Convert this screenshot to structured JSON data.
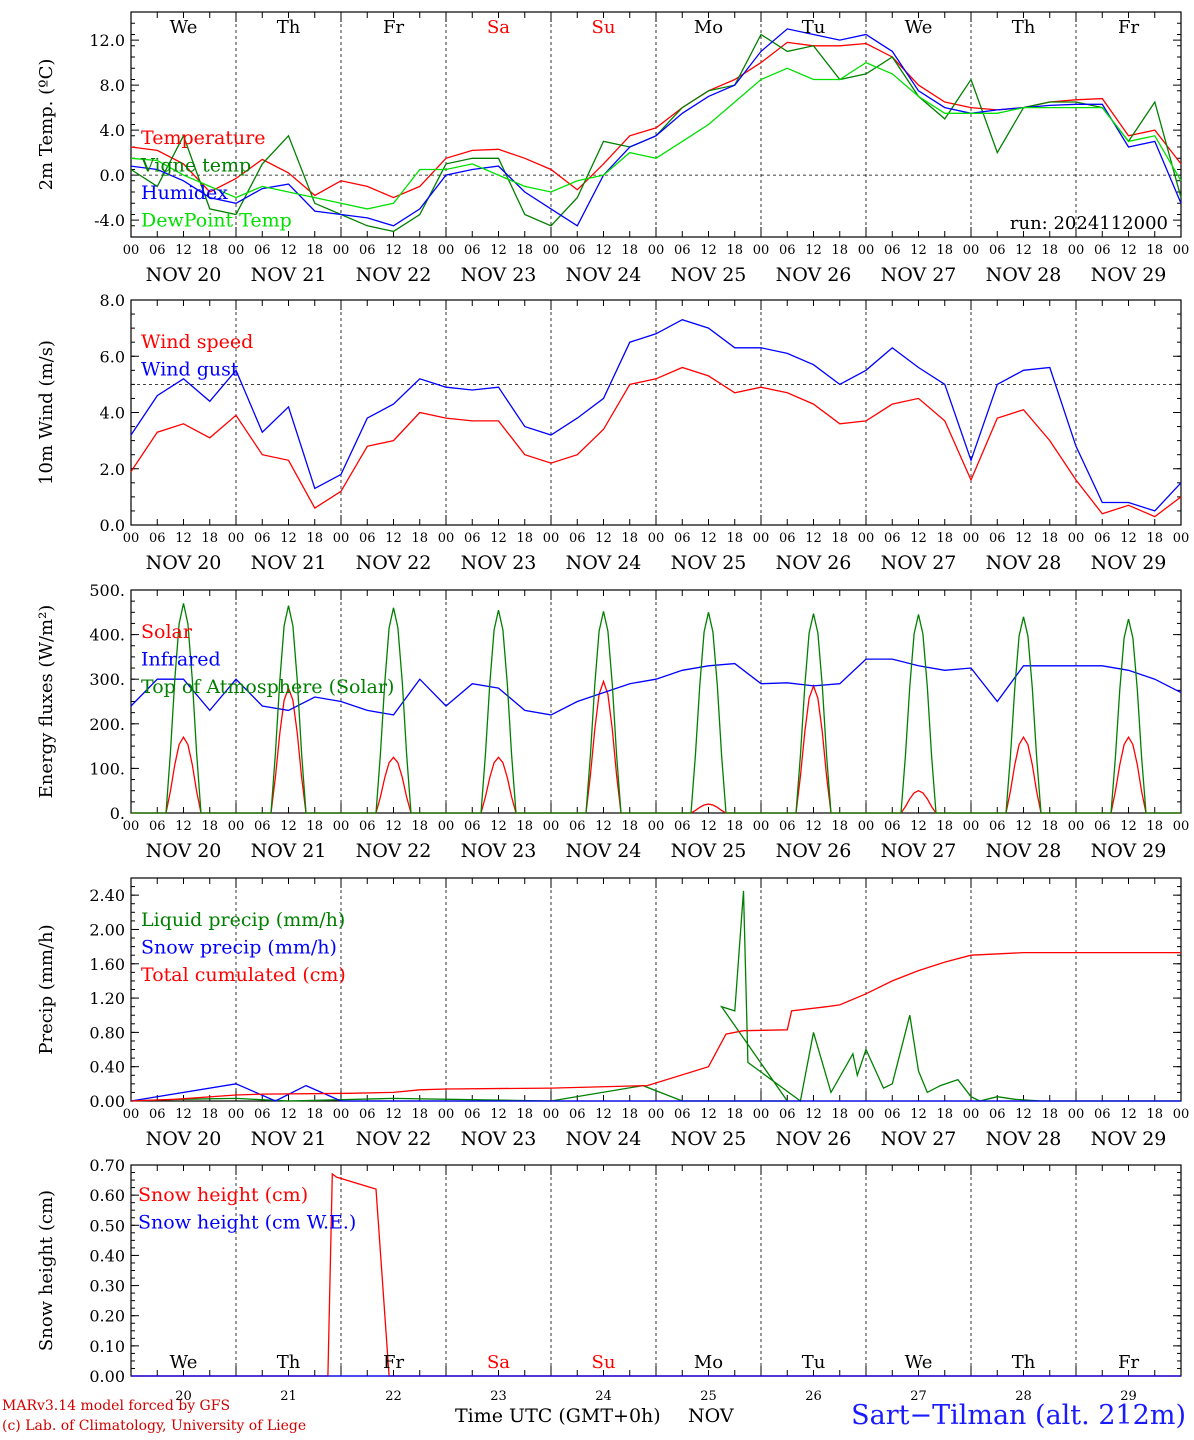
{
  "footer": {
    "model": "MARv3.14 model forced by GFS",
    "credit": "(c) Lab. of Climatology, University of Liege",
    "xlabel": "Time UTC (GMT+0h)",
    "month": "NOV",
    "station": "Sart−Tilman (alt. 212m)"
  },
  "colors": {
    "red": "#ff0000",
    "green": "#008000",
    "blue": "#0000ff",
    "lightgreen": "#00e000",
    "weekend": "#ff0000"
  },
  "days": [
    "We",
    "Th",
    "Fr",
    "Sa",
    "Su",
    "Mo",
    "Tu",
    "We",
    "Th",
    "Fr"
  ],
  "weekend_days": [
    "Sa",
    "Su"
  ],
  "dates": [
    "NOV 20",
    "NOV 21",
    "NOV 22",
    "NOV 23",
    "NOV 24",
    "NOV 25",
    "NOV 26",
    "NOV 27",
    "NOV 28",
    "NOV 29"
  ],
  "day_numbers": [
    "20",
    "21",
    "22",
    "23",
    "24",
    "25",
    "26",
    "27",
    "28",
    "29"
  ],
  "hour_ticks": [
    "00",
    "06",
    "12",
    "18"
  ],
  "chart_data": [
    {
      "type": "line",
      "ylabel": "2m Temp. (ºC)",
      "ylim": [
        -5.5,
        14.5
      ],
      "yticks": [
        "-4.0",
        "0.0",
        "4.0",
        "8.0",
        "12.0"
      ],
      "ytick_values": [
        -4,
        0,
        4,
        8,
        12
      ],
      "x_unit": "hours since NOV 20 00 UTC",
      "annotation": "run: 2024112000",
      "hline": 0,
      "series": [
        {
          "name": "Temperature",
          "color": "#ff0000",
          "x": [
            0,
            6,
            12,
            18,
            24,
            30,
            36,
            42,
            48,
            54,
            60,
            66,
            72,
            78,
            84,
            90,
            96,
            102,
            108,
            114,
            120,
            126,
            132,
            138,
            144,
            150,
            156,
            162,
            168,
            174,
            180,
            186,
            192,
            198,
            204,
            210,
            216,
            222,
            228,
            234,
            240
          ],
          "values": [
            2.5,
            2.2,
            1.0,
            -1.5,
            -0.3,
            1.4,
            0.2,
            -1.8,
            -0.5,
            -1.0,
            -2.0,
            -1.0,
            1.5,
            2.2,
            2.3,
            1.5,
            0.5,
            -1.3,
            1.0,
            3.5,
            4.2,
            6.0,
            7.5,
            8.5,
            10.0,
            11.8,
            11.5,
            11.5,
            11.7,
            10.5,
            8.0,
            6.5,
            6.0,
            5.8,
            6.0,
            6.5,
            6.7,
            6.8,
            3.5,
            4.0,
            1.0
          ]
        },
        {
          "name": "Vigne temp",
          "color": "#008000",
          "x": [
            0,
            6,
            12,
            18,
            24,
            30,
            36,
            42,
            48,
            54,
            60,
            66,
            72,
            78,
            84,
            90,
            96,
            102,
            108,
            114,
            120,
            126,
            132,
            138,
            144,
            150,
            156,
            162,
            168,
            174,
            180,
            186,
            192,
            198,
            204,
            210,
            216,
            222,
            228,
            234,
            240
          ],
          "values": [
            0.5,
            -1.0,
            3.5,
            -3.0,
            -3.5,
            1.0,
            3.5,
            -2.5,
            -3.5,
            -4.5,
            -5.0,
            -3.5,
            1.0,
            1.5,
            1.5,
            -3.5,
            -4.5,
            -2.0,
            3.0,
            2.5,
            3.5,
            6.0,
            7.5,
            8.0,
            12.5,
            11.0,
            11.5,
            8.5,
            9.0,
            10.5,
            7.0,
            5.0,
            8.5,
            2.0,
            6.0,
            6.5,
            6.5,
            6.0,
            3.0,
            6.5,
            -2.0
          ]
        },
        {
          "name": "Humidex",
          "color": "#0000ff",
          "x": [
            0,
            6,
            12,
            18,
            24,
            30,
            36,
            42,
            48,
            54,
            60,
            66,
            72,
            78,
            84,
            90,
            96,
            102,
            108,
            114,
            120,
            126,
            132,
            138,
            144,
            150,
            156,
            162,
            168,
            174,
            180,
            186,
            192,
            198,
            204,
            210,
            216,
            222,
            228,
            234,
            240
          ],
          "values": [
            0.8,
            0.5,
            -0.5,
            -2.0,
            -2.5,
            -1.2,
            -0.8,
            -3.2,
            -3.5,
            -3.8,
            -4.5,
            -3.0,
            0.0,
            0.5,
            0.8,
            -1.5,
            -3.0,
            -4.5,
            0.0,
            2.5,
            3.5,
            5.5,
            7.0,
            8.0,
            11.0,
            13.0,
            12.5,
            12.0,
            12.5,
            11.0,
            7.5,
            6.0,
            5.5,
            5.8,
            6.0,
            6.2,
            6.3,
            6.3,
            2.5,
            3.0,
            -2.5
          ]
        },
        {
          "name": "DewPoint Temp",
          "color": "#00e000",
          "x": [
            0,
            6,
            12,
            18,
            24,
            30,
            36,
            42,
            48,
            54,
            60,
            66,
            72,
            78,
            84,
            90,
            96,
            102,
            108,
            114,
            120,
            126,
            132,
            138,
            144,
            150,
            156,
            162,
            168,
            174,
            180,
            186,
            192,
            198,
            204,
            210,
            216,
            222,
            228,
            234,
            240
          ],
          "values": [
            1.5,
            1.3,
            0.0,
            -1.0,
            -2.0,
            -1.0,
            -1.5,
            -2.0,
            -2.5,
            -3.0,
            -2.5,
            0.5,
            0.5,
            1.0,
            0.0,
            -1.0,
            -1.5,
            -0.5,
            0.0,
            2.0,
            1.5,
            3.0,
            4.5,
            6.5,
            8.5,
            9.5,
            8.5,
            8.5,
            10.0,
            9.0,
            7.0,
            5.5,
            5.5,
            5.5,
            6.0,
            6.0,
            6.0,
            6.0,
            3.0,
            3.5,
            -0.5
          ]
        }
      ]
    },
    {
      "type": "line",
      "ylabel": "10m Wind (m/s)",
      "ylim": [
        0,
        8
      ],
      "yticks": [
        "0.0",
        "2.0",
        "4.0",
        "6.0",
        "8.0"
      ],
      "ytick_values": [
        0,
        2,
        4,
        6,
        8
      ],
      "hline": 5,
      "series": [
        {
          "name": "Wind speed",
          "color": "#ff0000",
          "x": [
            0,
            6,
            12,
            18,
            24,
            30,
            36,
            42,
            48,
            54,
            60,
            66,
            72,
            78,
            84,
            90,
            96,
            102,
            108,
            114,
            120,
            126,
            132,
            138,
            144,
            150,
            156,
            162,
            168,
            174,
            180,
            186,
            192,
            198,
            204,
            210,
            216,
            222,
            228,
            234,
            240
          ],
          "values": [
            1.9,
            3.3,
            3.6,
            3.1,
            3.9,
            2.5,
            2.3,
            0.6,
            1.2,
            2.8,
            3.0,
            4.0,
            3.8,
            3.7,
            3.7,
            2.5,
            2.2,
            2.5,
            3.4,
            5.0,
            5.2,
            5.6,
            5.3,
            4.7,
            4.9,
            4.7,
            4.3,
            3.6,
            3.7,
            4.3,
            4.5,
            3.7,
            1.6,
            3.8,
            4.1,
            3.0,
            1.6,
            0.4,
            0.7,
            0.3,
            1.0
          ]
        },
        {
          "name": "Wind gust",
          "color": "#0000ff",
          "x": [
            0,
            6,
            12,
            18,
            24,
            30,
            36,
            42,
            48,
            54,
            60,
            66,
            72,
            78,
            84,
            90,
            96,
            102,
            108,
            114,
            120,
            126,
            132,
            138,
            144,
            150,
            156,
            162,
            168,
            174,
            180,
            186,
            192,
            198,
            204,
            210,
            216,
            222,
            228,
            234,
            240
          ],
          "values": [
            3.2,
            4.6,
            5.2,
            4.4,
            5.5,
            3.3,
            4.2,
            1.3,
            1.8,
            3.8,
            4.3,
            5.2,
            4.9,
            4.8,
            4.9,
            3.5,
            3.2,
            3.8,
            4.5,
            6.5,
            6.8,
            7.3,
            7.0,
            6.3,
            6.3,
            6.1,
            5.7,
            5.0,
            5.5,
            6.3,
            5.6,
            5.0,
            2.3,
            5.0,
            5.5,
            5.6,
            2.8,
            0.8,
            0.8,
            0.5,
            1.5
          ]
        }
      ]
    },
    {
      "type": "line",
      "ylabel": "Energy fluxes (W/m²)",
      "ylim": [
        0,
        500
      ],
      "yticks": [
        "0.",
        "100.",
        "200.",
        "300.",
        "400.",
        "500."
      ],
      "ytick_values": [
        0,
        100,
        200,
        300,
        400,
        500
      ],
      "series": [
        {
          "name": "Solar",
          "color": "#ff0000",
          "peaks": [
            170,
            280,
            125,
            125,
            295,
            20,
            285,
            50,
            170,
            170
          ]
        },
        {
          "name": "Infrared",
          "color": "#0000ff",
          "x": [
            0,
            6,
            12,
            18,
            24,
            30,
            36,
            42,
            48,
            54,
            60,
            66,
            72,
            78,
            84,
            90,
            96,
            102,
            108,
            114,
            120,
            126,
            132,
            138,
            144,
            150,
            156,
            162,
            168,
            174,
            180,
            186,
            192,
            198,
            204,
            210,
            216,
            222,
            228,
            234,
            240
          ],
          "values": [
            240,
            300,
            300,
            230,
            300,
            240,
            230,
            260,
            250,
            230,
            220,
            300,
            240,
            290,
            280,
            230,
            220,
            250,
            270,
            290,
            300,
            320,
            330,
            335,
            290,
            292,
            285,
            290,
            345,
            345,
            330,
            320,
            325,
            250,
            330,
            330,
            330,
            330,
            320,
            300,
            270
          ]
        },
        {
          "name": "Top of Atmosphere (Solar)",
          "color": "#008000",
          "peaks": [
            470,
            465,
            460,
            455,
            452,
            450,
            447,
            445,
            440,
            435
          ]
        }
      ]
    },
    {
      "type": "line",
      "ylabel": "Precip (mm/h)",
      "ylim": [
        0,
        2.6
      ],
      "yticks": [
        "0.00",
        "0.40",
        "0.80",
        "1.20",
        "1.60",
        "2.00",
        "2.40"
      ],
      "ytick_values": [
        0,
        0.4,
        0.8,
        1.2,
        1.6,
        2.0,
        2.4
      ],
      "series": [
        {
          "name": "Liquid precip (mm/h)",
          "color": "#008000",
          "x": [
            0,
            11,
            24,
            36,
            60,
            96,
            117,
            126,
            144,
            150,
            135,
            138,
            140,
            141,
            153,
            156,
            160,
            165,
            166,
            168,
            172,
            174,
            178,
            180,
            182,
            185,
            189,
            192,
            194,
            198,
            202,
            208,
            214,
            240
          ],
          "values": [
            0,
            0.02,
            0.03,
            0,
            0.03,
            0,
            0.18,
            0,
            0,
            0,
            1.1,
            1.05,
            2.45,
            0.45,
            0,
            0.8,
            0.1,
            0.55,
            0.3,
            0.6,
            0.15,
            0.2,
            1.0,
            0.35,
            0.1,
            0.18,
            0.25,
            0.05,
            0,
            0.05,
            0.02,
            0,
            0,
            0
          ]
        },
        {
          "name": "Snow precip (mm/h)",
          "color": "#0000ff",
          "x": [
            0,
            24,
            33,
            40,
            48,
            240
          ],
          "values": [
            0,
            0.2,
            0,
            0.18,
            0,
            0
          ]
        },
        {
          "name": "Total cumulated (cm)",
          "color": "#ff0000",
          "x": [
            0,
            10,
            24,
            30,
            50,
            60,
            66,
            72,
            96,
            118,
            132,
            136,
            140,
            150,
            151,
            159,
            162,
            168,
            174,
            180,
            186,
            192,
            204,
            240
          ],
          "values": [
            0,
            0.02,
            0.07,
            0.08,
            0.09,
            0.1,
            0.13,
            0.14,
            0.15,
            0.18,
            0.4,
            0.78,
            0.82,
            0.83,
            1.05,
            1.1,
            1.12,
            1.25,
            1.4,
            1.52,
            1.62,
            1.7,
            1.73,
            1.73
          ]
        }
      ]
    },
    {
      "type": "line",
      "ylabel": "Snow height (cm)",
      "ylim": [
        0,
        0.7
      ],
      "yticks": [
        "0.00",
        "0.10",
        "0.20",
        "0.30",
        "0.40",
        "0.50",
        "0.60",
        "0.70"
      ],
      "ytick_values": [
        0,
        0.1,
        0.2,
        0.3,
        0.4,
        0.5,
        0.6,
        0.7
      ],
      "series": [
        {
          "name": "Snow height (cm)",
          "color": "#ff0000",
          "x": [
            0,
            45,
            46,
            47,
            56,
            59,
            240
          ],
          "values": [
            0,
            0,
            0.67,
            0.66,
            0.62,
            0,
            0
          ]
        },
        {
          "name": "Snow height (cm W.E.)",
          "color": "#0000ff",
          "x": [
            0,
            240
          ],
          "values": [
            0,
            0
          ]
        }
      ]
    }
  ]
}
